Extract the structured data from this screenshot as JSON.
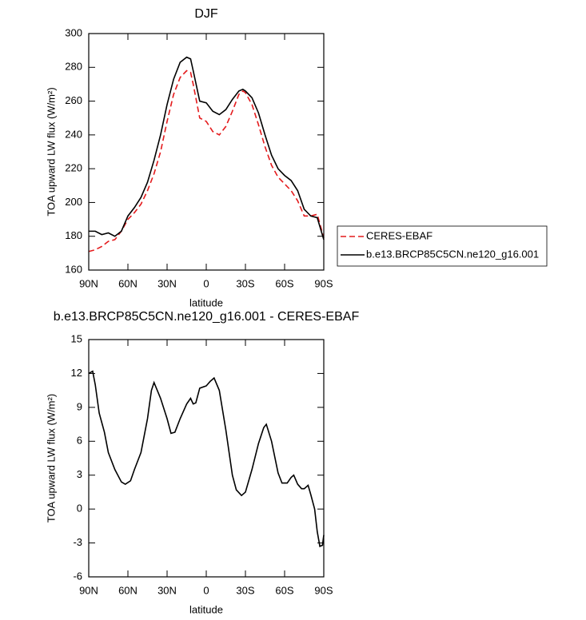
{
  "chart_data": [
    {
      "type": "line",
      "title": "DJF",
      "xlabel": "latitude",
      "ylabel": "TOA upward LW flux (W/m²)",
      "xlim": [
        90,
        -90
      ],
      "xticks": [
        {
          "value": 90,
          "label": "90N"
        },
        {
          "value": 60,
          "label": "60N"
        },
        {
          "value": 30,
          "label": "30N"
        },
        0,
        {
          "value": -30,
          "label": "30S"
        },
        {
          "value": -60,
          "label": "60S"
        },
        {
          "value": -90,
          "label": "90S"
        }
      ],
      "ylim": [
        160,
        300
      ],
      "yticks": [
        160,
        180,
        200,
        220,
        240,
        260,
        280,
        300
      ],
      "legend": "right",
      "x": [
        90,
        85,
        80,
        75,
        70,
        65,
        60,
        55,
        50,
        45,
        40,
        35,
        30,
        25,
        20,
        15,
        12,
        10,
        5,
        0,
        -5,
        -10,
        -15,
        -20,
        -25,
        -28,
        -30,
        -35,
        -40,
        -45,
        -50,
        -55,
        -60,
        -65,
        -70,
        -75,
        -80,
        -85,
        -90
      ],
      "series": [
        {
          "name": "CERES-EBAF",
          "color": "#e41a1c",
          "dashed": true,
          "values": [
            171,
            172,
            174,
            177,
            178,
            183,
            190,
            194,
            199,
            207,
            217,
            230,
            248,
            264,
            274,
            278,
            277,
            270,
            250,
            248,
            242,
            240,
            245,
            254,
            264,
            266,
            265,
            258,
            246,
            233,
            222,
            215,
            211,
            207,
            201,
            192,
            192,
            193,
            179
          ]
        },
        {
          "name": "b.e13.BRCP85C5CN.ne120_g16.001",
          "color": "#000000",
          "dashed": false,
          "values": [
            183,
            183,
            181,
            182,
            180,
            183,
            192,
            197,
            203,
            212,
            225,
            240,
            258,
            273,
            283,
            286,
            285,
            278,
            260,
            259,
            254,
            252,
            255,
            261,
            266,
            267,
            266,
            262,
            253,
            240,
            228,
            220,
            216,
            213,
            207,
            196,
            192,
            191,
            178
          ]
        }
      ]
    },
    {
      "type": "line",
      "title": "b.e13.BRCP85C5CN.ne120_g16.001 - CERES-EBAF",
      "xlabel": "latitude",
      "ylabel": "TOA upward LW flux (W/m²)",
      "xlim": [
        90,
        -90
      ],
      "xticks": [
        {
          "value": 90,
          "label": "90N"
        },
        {
          "value": 60,
          "label": "60N"
        },
        {
          "value": 30,
          "label": "30N"
        },
        0,
        {
          "value": -30,
          "label": "30S"
        },
        {
          "value": -60,
          "label": "60S"
        },
        {
          "value": -90,
          "label": "90S"
        }
      ],
      "ylim": [
        -6,
        15
      ],
      "yticks": [
        -6,
        -3,
        0,
        3,
        6,
        9,
        12,
        15
      ],
      "x": [
        90,
        87,
        85,
        82,
        78,
        75,
        70,
        65,
        62,
        58,
        55,
        50,
        45,
        42,
        40,
        35,
        30,
        27,
        24,
        20,
        15,
        12,
        10,
        8,
        5,
        0,
        -3,
        -6,
        -10,
        -15,
        -20,
        -23,
        -27,
        -30,
        -35,
        -40,
        -44,
        -46,
        -50,
        -55,
        -58,
        -62,
        -65,
        -67,
        -70,
        -73,
        -75,
        -78,
        -80,
        -83,
        -85,
        -87,
        -89,
        -90
      ],
      "series": [
        {
          "color": "#000000",
          "dashed": false,
          "values": [
            12.0,
            12.2,
            11.0,
            8.5,
            6.8,
            5.0,
            3.5,
            2.4,
            2.2,
            2.5,
            3.5,
            5.0,
            8.0,
            10.5,
            11.2,
            9.8,
            8.0,
            6.7,
            6.8,
            8.0,
            9.3,
            9.8,
            9.3,
            9.4,
            10.7,
            10.9,
            11.3,
            11.6,
            10.5,
            7.0,
            3.0,
            1.7,
            1.2,
            1.5,
            3.5,
            5.8,
            7.2,
            7.5,
            6.0,
            3.2,
            2.3,
            2.3,
            2.8,
            3.0,
            2.2,
            1.8,
            1.8,
            2.1,
            1.3,
            0,
            -2.0,
            -3.3,
            -3.2,
            -2.3
          ]
        }
      ]
    }
  ]
}
